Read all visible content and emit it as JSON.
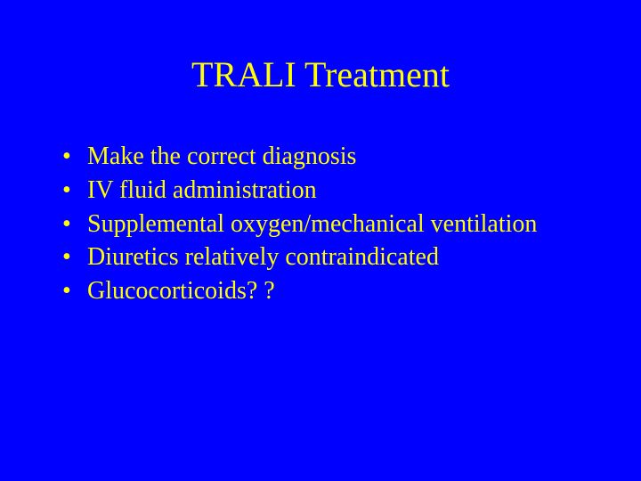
{
  "slide": {
    "background_color": "#0000ff",
    "text_color": "#ffff00",
    "title": "TRALI Treatment",
    "title_fontsize": 40,
    "bullet_fontsize": 28,
    "font_family": "Times New Roman",
    "bullets": [
      "Make the correct diagnosis",
      "IV fluid administration",
      "Supplemental oxygen/mechanical ventilation",
      "Diuretics relatively contraindicated",
      "Glucocorticoids? ?"
    ]
  }
}
